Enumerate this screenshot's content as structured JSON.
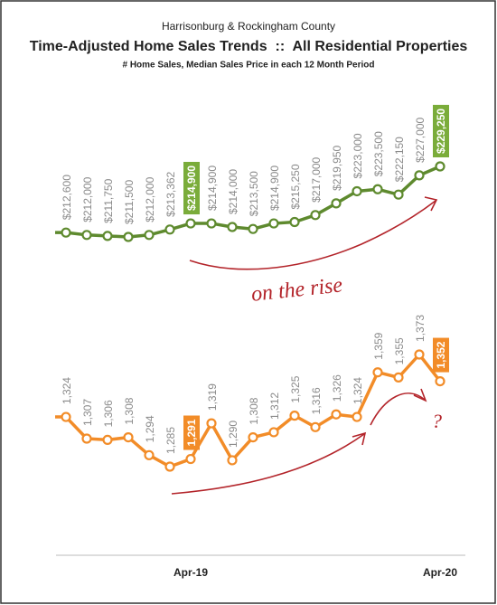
{
  "chart_data": {
    "type": "line",
    "supertitle": "Harrisonburg & Rockingham County",
    "title": "Time-Adjusted Home Sales Trends  ::  All Residential Properties",
    "subtitle": "# Home Sales, Median Sales Price in each 12 Month Period",
    "categories": [
      null,
      null,
      null,
      null,
      null,
      null,
      "Apr-19",
      null,
      null,
      null,
      null,
      null,
      null,
      null,
      null,
      null,
      null,
      null,
      "Apr-20"
    ],
    "series": [
      {
        "color": "#5e8a2e",
        "highlight_color": "#7aac3a",
        "values": [
          212600,
          212000,
          211750,
          211500,
          212000,
          213362,
          214900,
          214900,
          214000,
          213500,
          214900,
          215250,
          217000,
          219950,
          223000,
          223500,
          222150,
          227000,
          229250
        ],
        "value_labels": [
          "$212,600",
          "$212,000",
          "$211,750",
          "$211,500",
          "$212,000",
          "$213,362",
          "$214,900",
          "$214,900",
          "$214,000",
          "$213,500",
          "$214,900",
          "$215,250",
          "$217,000",
          "$219,950",
          "$223,000",
          "$223,500",
          "$222,150",
          "$227,000",
          "$229,250"
        ]
      },
      {
        "color": "#f28c28",
        "highlight_color": "#f28c28",
        "axis": "y2",
        "values": [
          1324,
          1307,
          1306,
          1308,
          1294,
          1285,
          1291,
          1319,
          1290,
          1308,
          1312,
          1325,
          1316,
          1326,
          1324,
          1359,
          1355,
          1373,
          1352
        ],
        "value_labels": [
          "1,324",
          "1,307",
          "1,306",
          "1,308",
          "1,294",
          "1,285",
          "1,291",
          "1,319",
          "1,290",
          "1,308",
          "1,312",
          "1,325",
          "1,316",
          "1,326",
          "1,324",
          "1,359",
          "1,355",
          "1,373",
          "1,352"
        ]
      }
    ],
    "highlight": [
      6,
      18
    ],
    "annotations": [
      "on the rise",
      "?"
    ]
  }
}
